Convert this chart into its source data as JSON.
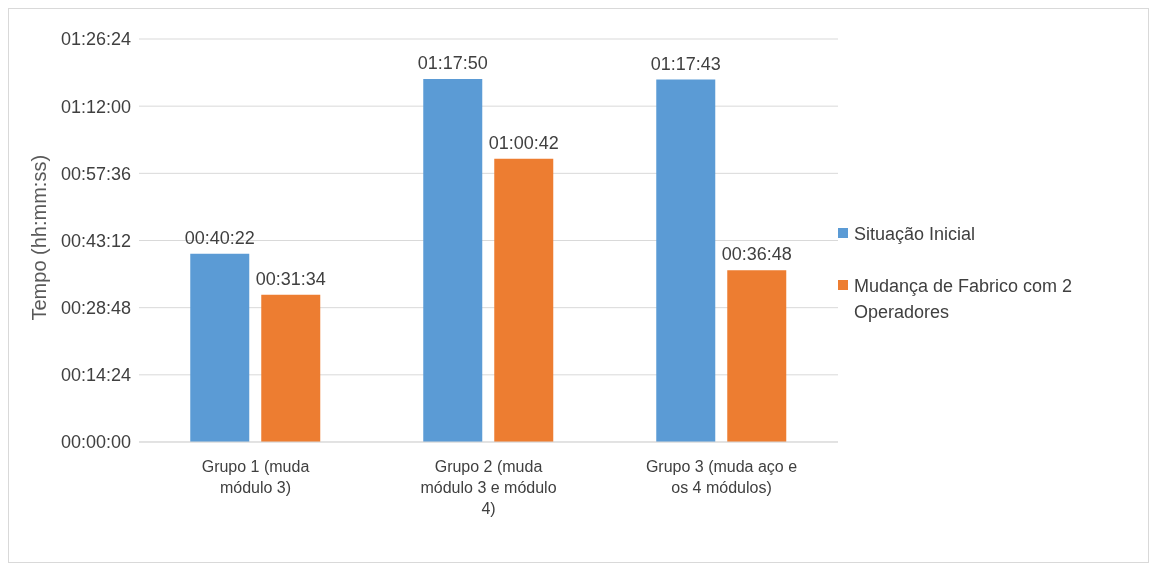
{
  "chart_data": {
    "type": "bar",
    "ylabel": "Tempo (hh:mm:ss)",
    "categories": [
      "Grupo 1 (muda módulo 3)",
      "Grupo 2 (muda módulo 3 e módulo 4)",
      "Grupo 3 (muda aço e os 4 módulos)"
    ],
    "series": [
      {
        "name": "Situação Inicial",
        "color": "#5b9bd5",
        "values": [
          2422,
          4670,
          4663
        ],
        "value_labels": [
          "00:40:22",
          "01:17:50",
          "01:17:43"
        ]
      },
      {
        "name": "Mudança de Fabrico com 2 Operadores",
        "color": "#ed7d31",
        "values": [
          1894,
          3642,
          2208
        ],
        "value_labels": [
          "00:31:34",
          "01:00:42",
          "00:36:48"
        ]
      }
    ],
    "ylim": [
      0,
      5184
    ],
    "yticks": [
      {
        "value": 0,
        "label": "00:00:00"
      },
      {
        "value": 864,
        "label": "00:14:24"
      },
      {
        "value": 1728,
        "label": "00:28:48"
      },
      {
        "value": 2592,
        "label": "00:43:12"
      },
      {
        "value": 3456,
        "label": "00:57:36"
      },
      {
        "value": 4320,
        "label": "01:12:00"
      },
      {
        "value": 5184,
        "label": "01:26:24"
      }
    ],
    "grid": "y",
    "legend": "right"
  }
}
